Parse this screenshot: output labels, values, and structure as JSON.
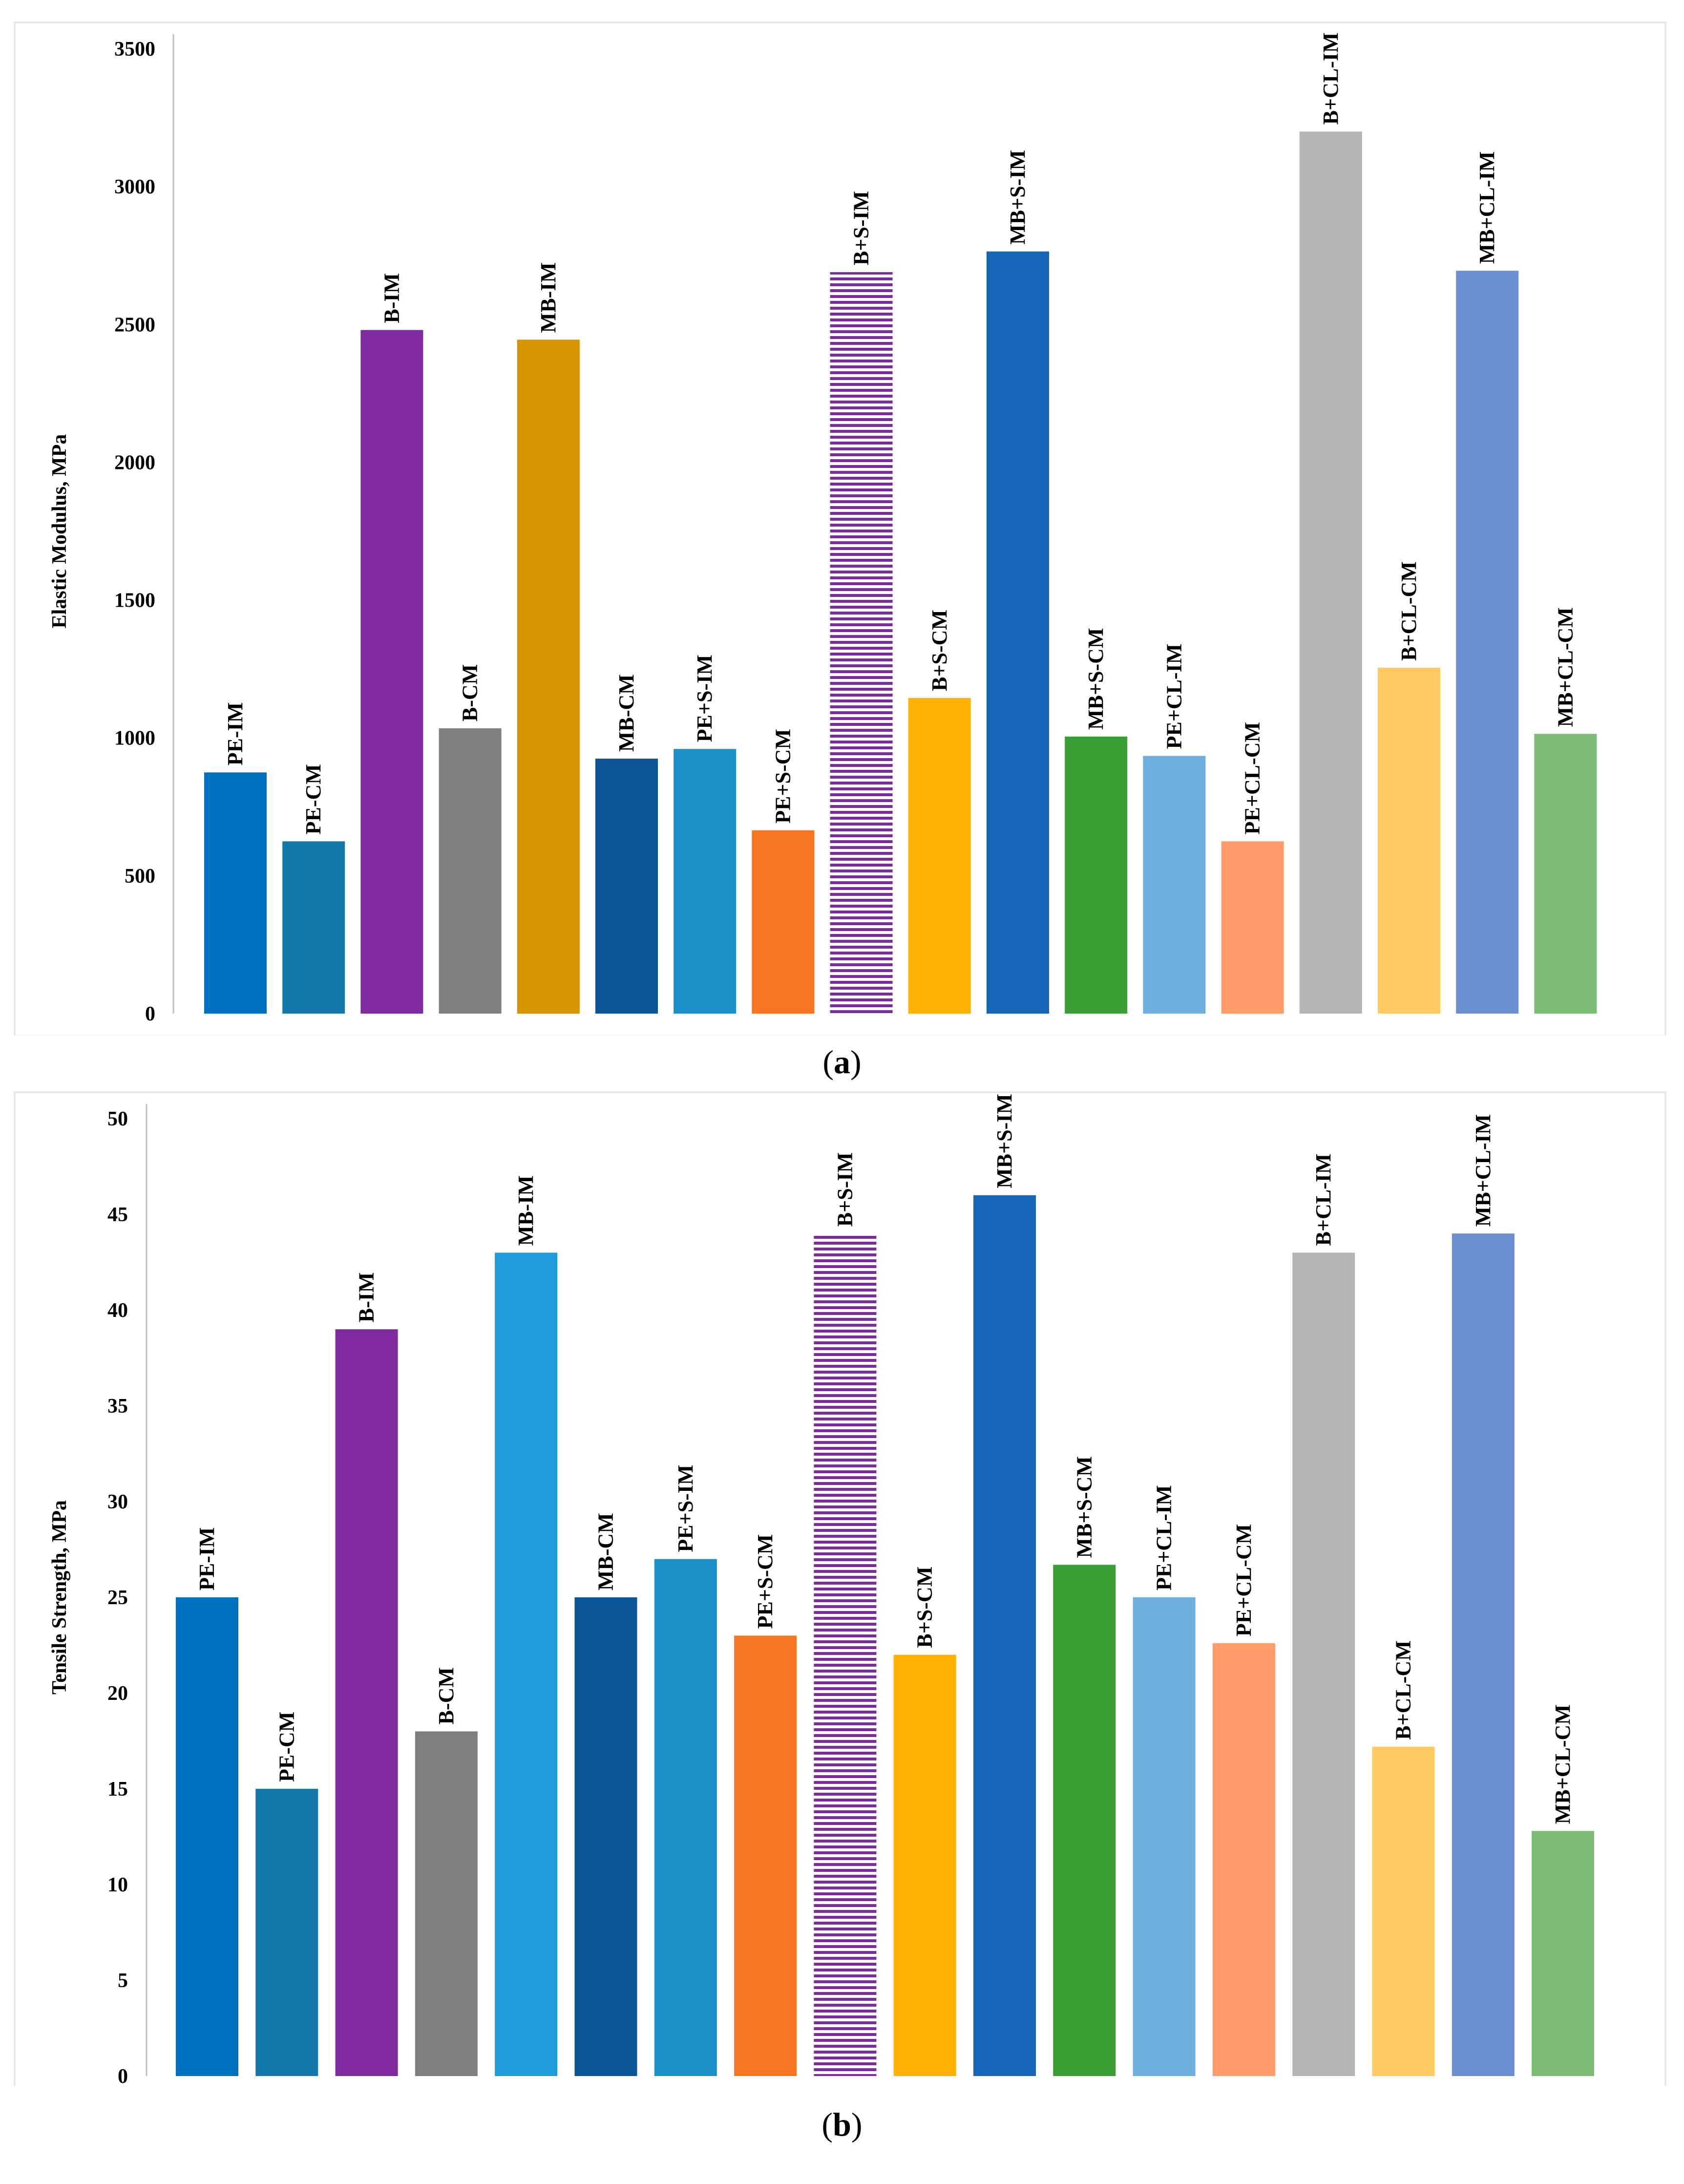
{
  "chart_data": [
    {
      "type": "bar",
      "panel_label": "a",
      "ylabel": "Elastic Modulus, MPa",
      "xlabel": "",
      "ylim": [
        0,
        3500
      ],
      "yticks": [
        0,
        500,
        1000,
        1500,
        2000,
        2500,
        3000,
        3500
      ],
      "categories": [
        "PE-IM",
        "PE-CM",
        "B-IM",
        "B-CM",
        "MB-IM",
        "MB-CM",
        "PE+S-IM",
        "PE+S-CM",
        "B+S-IM",
        "B+S-CM",
        "MB+S-IM",
        "MB+S-CM",
        "PE+CL-IM",
        "PE+CL-CM",
        "B+CL-IM",
        "B+CL-CM",
        "MB+CL-IM",
        "MB+CL-CM"
      ],
      "values": [
        875,
        625,
        2480,
        1035,
        2445,
        925,
        960,
        665,
        2690,
        1145,
        2765,
        1005,
        935,
        625,
        3200,
        1255,
        2695,
        1015
      ],
      "colors": [
        "#0070C0",
        "#1479A8",
        "#7F2A9E",
        "#7F7F7F",
        "#D69500",
        "#0A5595",
        "#1A8FC8",
        "#F87522",
        "pattern",
        "#FFB300",
        "#1666B8",
        "#3B9E35",
        "#6EAEDE",
        "#FF9A6A",
        "#B5B5B5",
        "#FFCA62",
        "#6B8FD0",
        "#7BBC76"
      ]
    },
    {
      "type": "bar",
      "panel_label": "b",
      "ylabel": "Tensile Strength, MPa",
      "xlabel": "",
      "ylim": [
        0,
        50
      ],
      "yticks": [
        0,
        5,
        10,
        15,
        20,
        25,
        30,
        35,
        40,
        45,
        50
      ],
      "categories": [
        "PE-IM",
        "PE-CM",
        "B-IM",
        "B-CM",
        "MB-IM",
        "MB-CM",
        "PE+S-IM",
        "PE+S-CM",
        "B+S-IM",
        "B+S-CM",
        "MB+S-IM",
        "MB+S-CM",
        "PE+CL-IM",
        "PE+CL-CM",
        "B+CL-IM",
        "B+CL-CM",
        "MB+CL-IM",
        "MB+CL-CM"
      ],
      "values": [
        25,
        15,
        39,
        18,
        43,
        25,
        27,
        23,
        44,
        22,
        46,
        26.7,
        25,
        22.6,
        43,
        17.2,
        44,
        12.8
      ],
      "colors": [
        "#0070C0",
        "#1479A8",
        "#7F2A9E",
        "#7F7F7F",
        "#1D9DD9",
        "#0A5595",
        "#1A8FC8",
        "#F87522",
        "pattern",
        "#FFB300",
        "#1666B8",
        "#3B9E35",
        "#6EAEDE",
        "#FF9A6A",
        "#B5B5B5",
        "#FFCA62",
        "#6B8FD0",
        "#7BBC76"
      ]
    }
  ],
  "captions": {
    "a": "a",
    "b": "b"
  }
}
